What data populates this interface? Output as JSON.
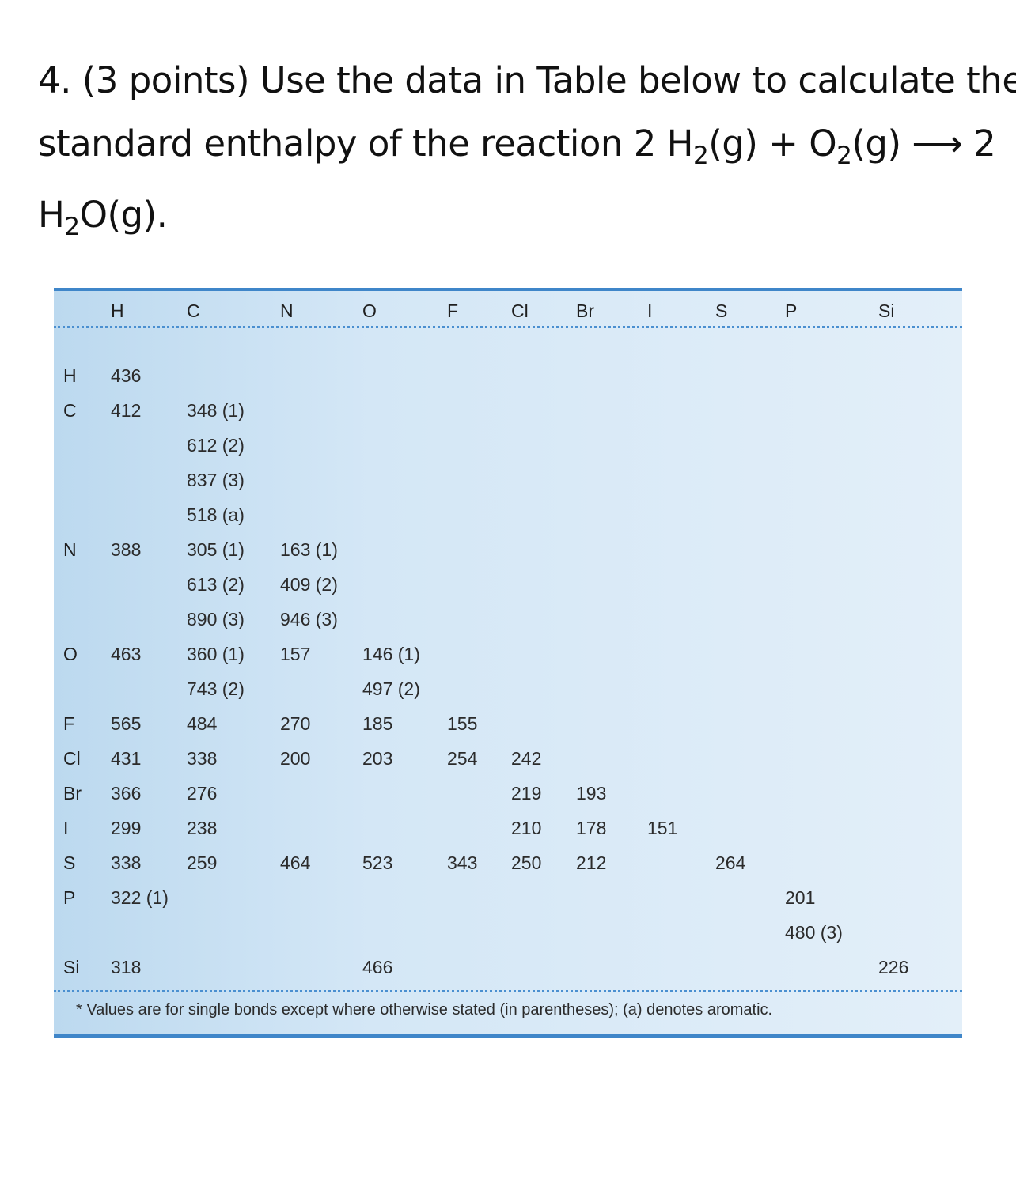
{
  "question": {
    "line1": "4. (3 points) Use the data in Table below to calculate the",
    "line2_a": "standard enthalpy of the reaction 2 H",
    "line2_sub1": "2",
    "line2_b": "(g) + O",
    "line2_sub2": "2",
    "line2_c": "(g) ⟶ 2",
    "line3_a": "H",
    "line3_sub": "2",
    "line3_b": "O(g)."
  },
  "table": {
    "columns": [
      "H",
      "C",
      "N",
      "O",
      "F",
      "Cl",
      "Br",
      "I",
      "S",
      "P",
      "Si"
    ],
    "rows": [
      {
        "label": "H",
        "cells": [
          [
            "436"
          ]
        ]
      },
      {
        "label": "C",
        "cells": [
          [
            "412"
          ],
          [
            "348 (1)",
            "612 (2)",
            "837 (3)",
            "518 (a)"
          ]
        ]
      },
      {
        "label": "N",
        "cells": [
          [
            "388"
          ],
          [
            "305 (1)",
            "613 (2)",
            "890 (3)"
          ],
          [
            "163 (1)",
            "409 (2)",
            "946 (3)"
          ]
        ]
      },
      {
        "label": "O",
        "cells": [
          [
            "463"
          ],
          [
            "360 (1)",
            "743 (2)"
          ],
          [
            "157"
          ],
          [
            "146 (1)",
            "497 (2)"
          ]
        ]
      },
      {
        "label": "F",
        "cells": [
          [
            "565"
          ],
          [
            "484"
          ],
          [
            "270"
          ],
          [
            "185"
          ],
          [
            "155"
          ]
        ]
      },
      {
        "label": "Cl",
        "cells": [
          [
            "431"
          ],
          [
            "338"
          ],
          [
            "200"
          ],
          [
            "203"
          ],
          [
            "254"
          ],
          [
            "242"
          ]
        ]
      },
      {
        "label": "Br",
        "cells": [
          [
            "366"
          ],
          [
            "276"
          ],
          [],
          [],
          [],
          [
            "219"
          ],
          [
            "193"
          ]
        ]
      },
      {
        "label": "I",
        "cells": [
          [
            "299"
          ],
          [
            "238"
          ],
          [],
          [],
          [],
          [
            "210"
          ],
          [
            "178"
          ],
          [
            "151"
          ]
        ]
      },
      {
        "label": "S",
        "cells": [
          [
            "338"
          ],
          [
            "259"
          ],
          [
            "464"
          ],
          [
            "523"
          ],
          [
            "343"
          ],
          [
            "250"
          ],
          [
            "212"
          ],
          [],
          [
            "264"
          ]
        ]
      },
      {
        "label": "P",
        "cells": [
          [
            "322 (1)"
          ],
          [],
          [],
          [],
          [],
          [],
          [],
          [],
          [],
          [
            "201",
            "480 (3)"
          ]
        ]
      },
      {
        "label": "Si",
        "cells": [
          [
            "318"
          ],
          [],
          [],
          [
            "466"
          ],
          [],
          [],
          [],
          [],
          [],
          [],
          [
            "226"
          ]
        ]
      }
    ],
    "footnote": "* Values are for single bonds except where otherwise stated (in parentheses); (a) denotes aromatic."
  }
}
